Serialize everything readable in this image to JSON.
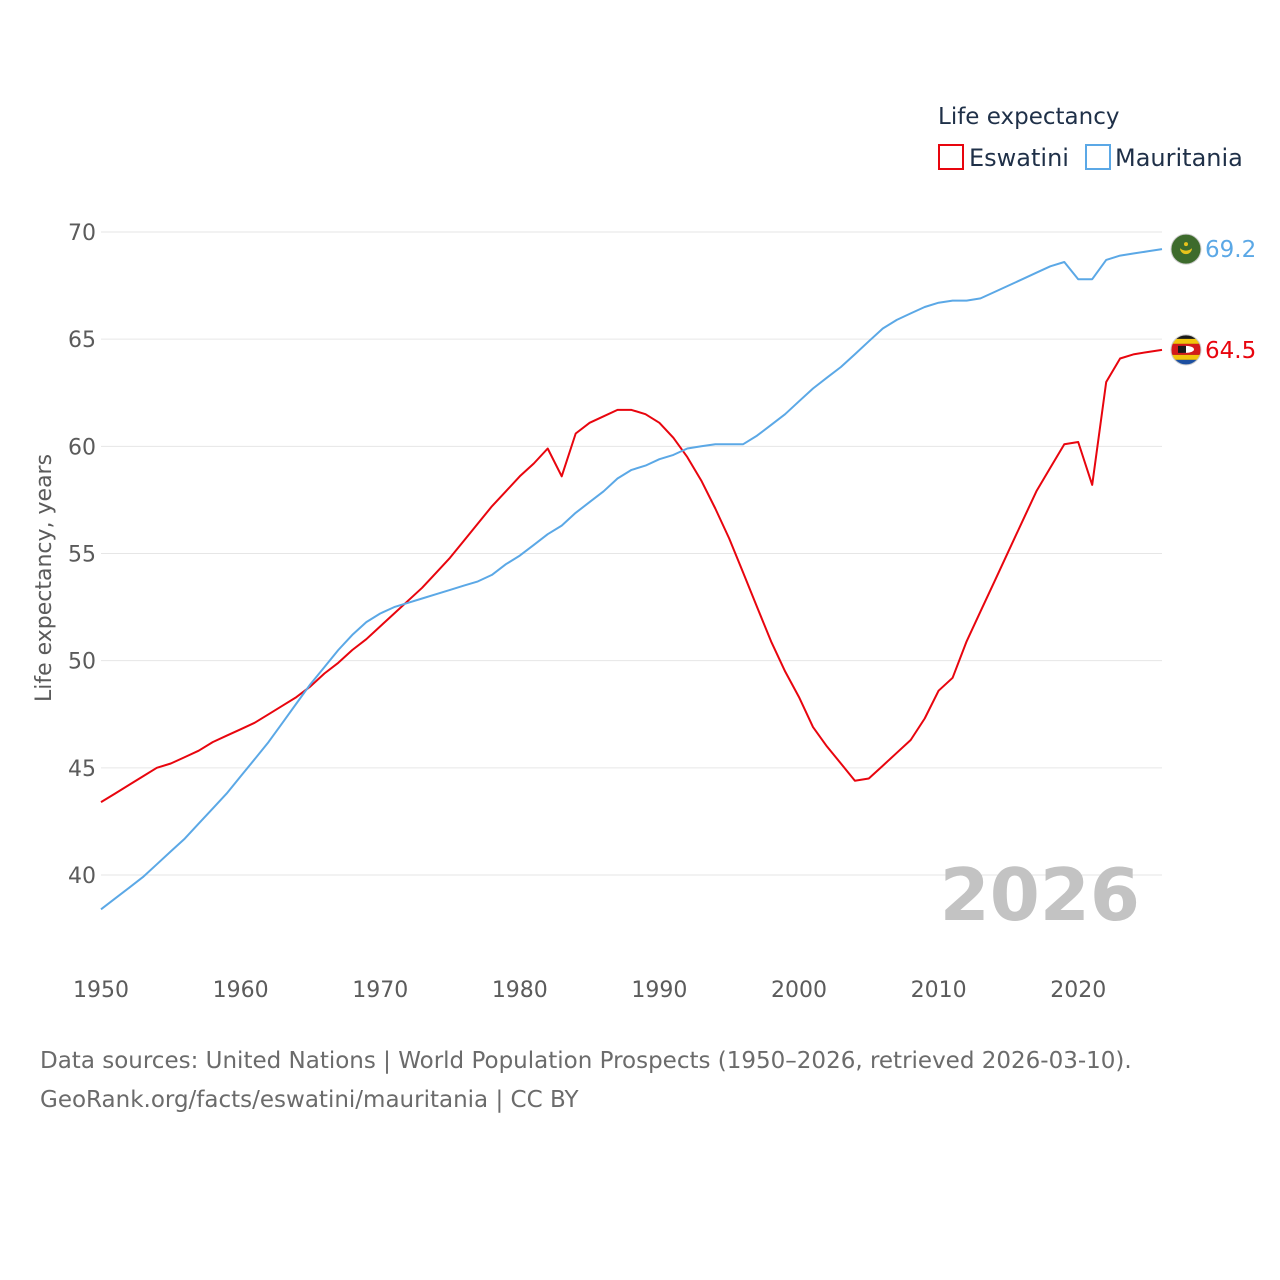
{
  "chart_data": {
    "type": "line",
    "title": "Life expectancy",
    "xlabel": "",
    "ylabel": "Life expectancy, years",
    "xlim": [
      1950,
      2026
    ],
    "ylim": [
      37.5,
      71
    ],
    "xticks": [
      "1950",
      "1960",
      "1970",
      "1980",
      "1990",
      "2000",
      "2010",
      "2020"
    ],
    "yticks": [
      "40",
      "45",
      "50",
      "55",
      "60",
      "65",
      "70"
    ],
    "current_year": "2026",
    "legend_position": "top-right",
    "series": [
      {
        "name": "Eswatini",
        "color": "#e8050e",
        "end_label": "64.5",
        "flag_icon": "eswatini-flag-icon",
        "x": [
          1950,
          1951,
          1952,
          1953,
          1954,
          1955,
          1956,
          1957,
          1958,
          1959,
          1960,
          1961,
          1962,
          1963,
          1964,
          1965,
          1966,
          1967,
          1968,
          1969,
          1970,
          1971,
          1972,
          1973,
          1974,
          1975,
          1976,
          1977,
          1978,
          1979,
          1980,
          1981,
          1982,
          1983,
          1984,
          1985,
          1986,
          1987,
          1988,
          1989,
          1990,
          1991,
          1992,
          1993,
          1994,
          1995,
          1996,
          1997,
          1998,
          1999,
          2000,
          2001,
          2002,
          2003,
          2004,
          2005,
          2006,
          2007,
          2008,
          2009,
          2010,
          2011,
          2012,
          2013,
          2014,
          2015,
          2016,
          2017,
          2018,
          2019,
          2020,
          2021,
          2022,
          2023,
          2024,
          2025,
          2026
        ],
        "values": [
          43.4,
          43.8,
          44.2,
          44.6,
          45.0,
          45.2,
          45.5,
          45.8,
          46.2,
          46.5,
          46.8,
          47.1,
          47.5,
          47.9,
          48.3,
          48.8,
          49.4,
          49.9,
          50.5,
          51.0,
          51.6,
          52.2,
          52.8,
          53.4,
          54.1,
          54.8,
          55.6,
          56.4,
          57.2,
          57.9,
          58.6,
          59.2,
          59.9,
          58.6,
          60.6,
          61.1,
          61.4,
          61.7,
          61.7,
          61.5,
          61.1,
          60.4,
          59.5,
          58.4,
          57.1,
          55.7,
          54.1,
          52.5,
          50.9,
          49.5,
          48.3,
          46.9,
          46.0,
          45.2,
          44.4,
          44.5,
          45.1,
          45.7,
          46.3,
          47.3,
          48.6,
          49.2,
          50.9,
          52.3,
          53.7,
          55.1,
          56.5,
          57.9,
          59.0,
          60.1,
          60.2,
          58.2,
          63.0,
          64.1,
          64.3,
          64.4,
          64.5
        ]
      },
      {
        "name": "Mauritania",
        "color": "#5ba8e6",
        "end_label": "69.2",
        "flag_icon": "mauritania-flag-icon",
        "x": [
          1950,
          1951,
          1952,
          1953,
          1954,
          1955,
          1956,
          1957,
          1958,
          1959,
          1960,
          1961,
          1962,
          1963,
          1964,
          1965,
          1966,
          1967,
          1968,
          1969,
          1970,
          1971,
          1972,
          1973,
          1974,
          1975,
          1976,
          1977,
          1978,
          1979,
          1980,
          1981,
          1982,
          1983,
          1984,
          1985,
          1986,
          1987,
          1988,
          1989,
          1990,
          1991,
          1992,
          1993,
          1994,
          1995,
          1996,
          1997,
          1998,
          1999,
          2000,
          2001,
          2002,
          2003,
          2004,
          2005,
          2006,
          2007,
          2008,
          2009,
          2010,
          2011,
          2012,
          2013,
          2014,
          2015,
          2016,
          2017,
          2018,
          2019,
          2020,
          2021,
          2022,
          2023,
          2024,
          2025,
          2026
        ],
        "values": [
          38.4,
          38.9,
          39.4,
          39.9,
          40.5,
          41.1,
          41.7,
          42.4,
          43.1,
          43.8,
          44.6,
          45.4,
          46.2,
          47.1,
          48.0,
          48.9,
          49.7,
          50.5,
          51.2,
          51.8,
          52.2,
          52.5,
          52.7,
          52.9,
          53.1,
          53.3,
          53.5,
          53.7,
          54.0,
          54.5,
          54.9,
          55.4,
          55.9,
          56.3,
          56.9,
          57.4,
          57.9,
          58.5,
          58.9,
          59.1,
          59.4,
          59.6,
          59.9,
          60.0,
          60.1,
          60.1,
          60.1,
          60.5,
          61.0,
          61.5,
          62.1,
          62.7,
          63.2,
          63.7,
          64.3,
          64.9,
          65.5,
          65.9,
          66.2,
          66.5,
          66.7,
          66.8,
          66.8,
          66.9,
          67.2,
          67.5,
          67.8,
          68.1,
          68.4,
          68.6,
          67.8,
          67.8,
          68.7,
          68.9,
          69.0,
          69.1,
          69.2
        ]
      }
    ]
  },
  "footer": {
    "source_line": "Data sources: United Nations | World Population Prospects (1950–2026, retrieved 2026-03-10).",
    "credit_line": "GeoRank.org/facts/eswatini/mauritania | CC BY"
  }
}
